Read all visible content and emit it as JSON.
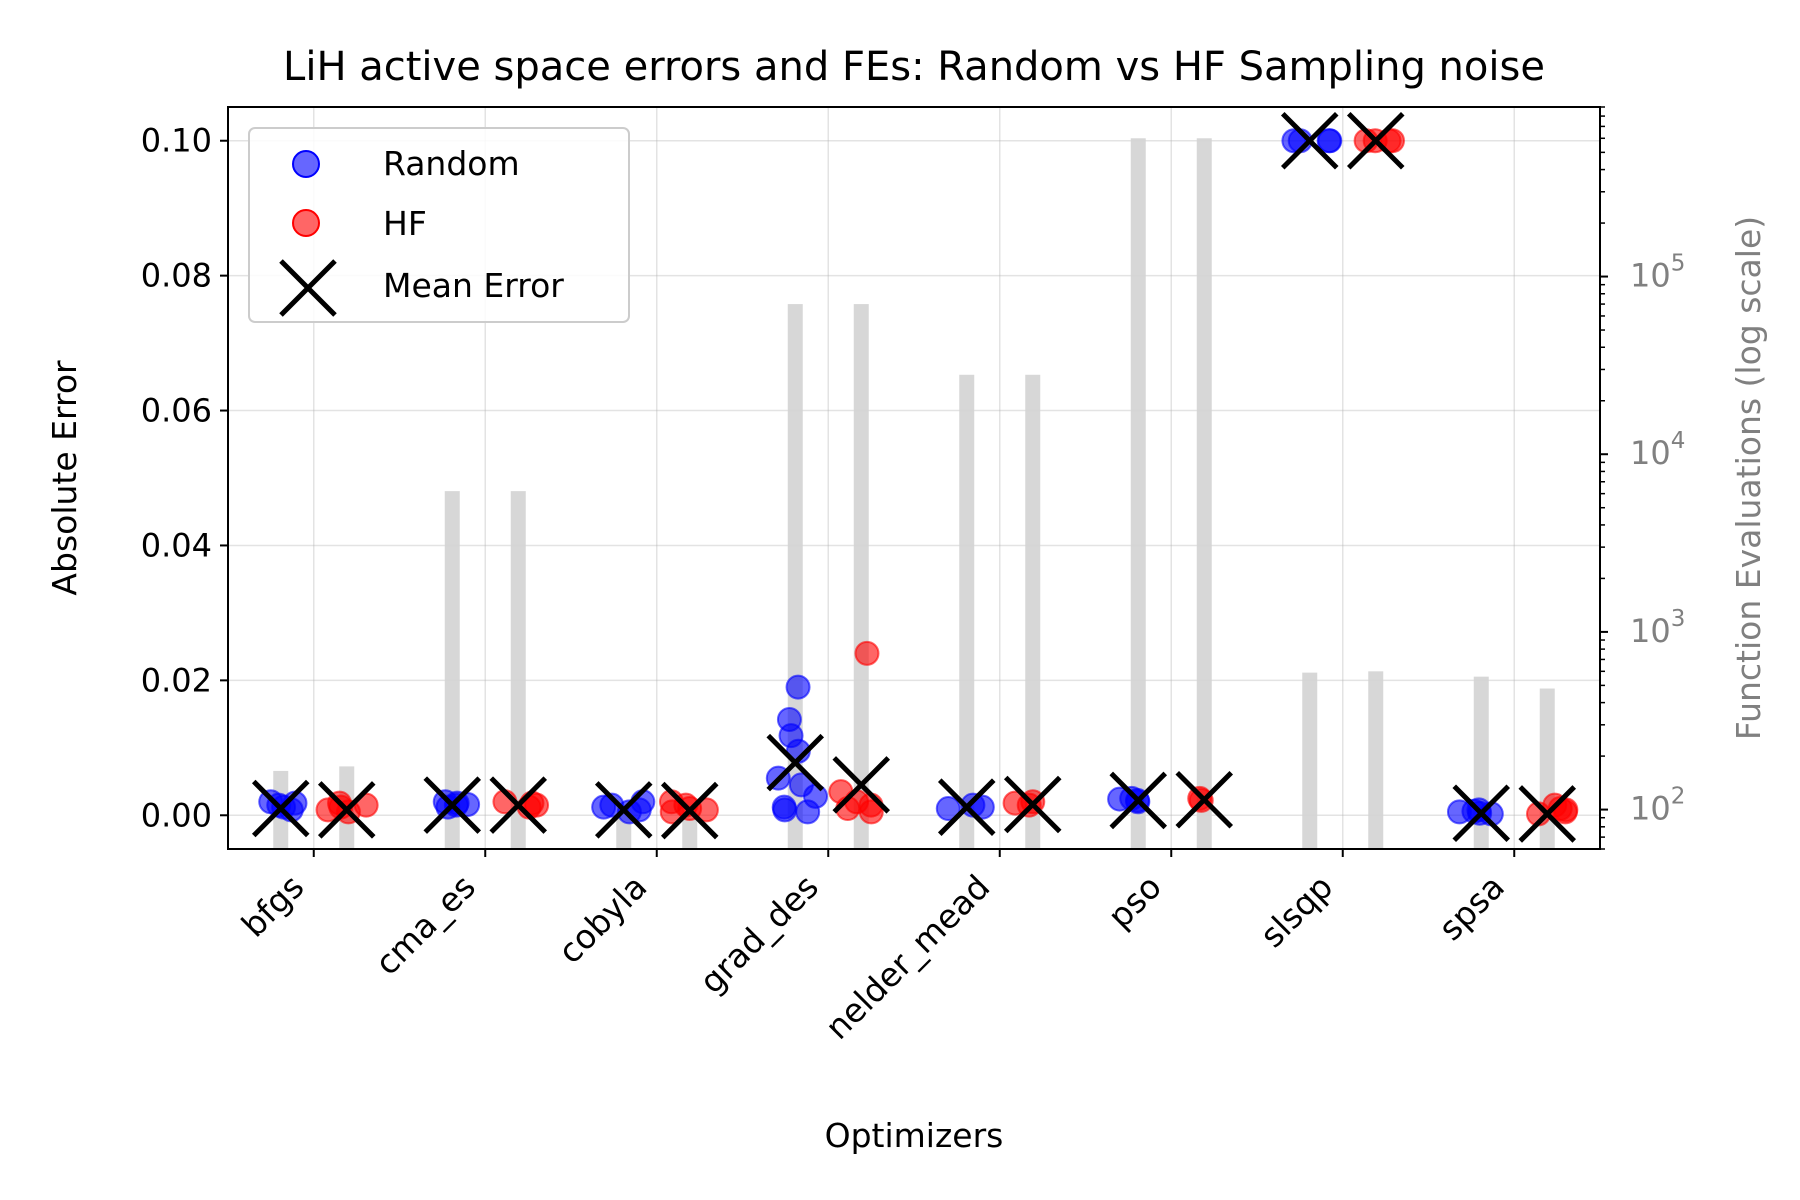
{
  "chart_data": {
    "type": "scatter",
    "title": "LiH active space errors and FEs: Random vs HF Sampling noise",
    "xlabel": "Optimizers",
    "ylabel": "Absolute Error",
    "y2label": "Function Evaluations (log scale)",
    "categories": [
      "bfgs",
      "cma_es",
      "cobyla",
      "grad_des",
      "nelder_mead",
      "pso",
      "slsqp",
      "spsa"
    ],
    "ylim": [
      -0.005,
      0.105
    ],
    "yticks": [
      0.0,
      0.02,
      0.04,
      0.06,
      0.08,
      0.1
    ],
    "ytick_labels": [
      "0.00",
      "0.02",
      "0.04",
      "0.06",
      "0.08",
      "0.10"
    ],
    "y2_scale": "log",
    "y2lim": [
      60,
      900000
    ],
    "y2ticks": [
      100,
      1000,
      10000,
      100000
    ],
    "y2tick_labels": [
      {
        "base": "10",
        "exp": "2"
      },
      {
        "base": "10",
        "exp": "3"
      },
      {
        "base": "10",
        "exp": "4"
      },
      {
        "base": "10",
        "exp": "5"
      }
    ],
    "grid": true,
    "legend": {
      "position": "top-left",
      "entries": [
        {
          "label": "Random",
          "marker": "circle",
          "color": "#0000ff"
        },
        {
          "label": "HF",
          "marker": "circle",
          "color": "#ff0000"
        },
        {
          "label": "Mean Error",
          "marker": "x",
          "color": "#000000"
        }
      ]
    },
    "colors": {
      "random": "#0000ff",
      "hf": "#ff0000",
      "mean": "#000000",
      "fe_bar": "#d3d3d3",
      "y2_axis": "#808080"
    },
    "series": [
      {
        "name": "Random",
        "offset": "left",
        "points": [
          [
            0.0008,
            0.0012,
            0.0015,
            0.002,
            0.0018
          ],
          [
            0.0015,
            0.0018,
            0.0012,
            0.0016,
            0.002
          ],
          [
            0.0008,
            0.0012,
            0.0005,
            0.002,
            0.0015
          ],
          [
            0.019,
            0.0142,
            0.0118,
            0.0095,
            0.0055,
            0.0045,
            0.0028,
            0.0012,
            0.0008,
            0.0005
          ],
          [
            0.0012,
            0.0015,
            0.001
          ],
          [
            0.0022,
            0.0025,
            0.002,
            0.0024
          ],
          [
            0.1,
            0.1,
            0.1,
            0.1
          ],
          [
            0.0008,
            0.0003,
            0.0005,
            0.0002,
            0.0006
          ]
        ],
        "mean": [
          0.001,
          0.0015,
          0.0008,
          0.0078,
          0.0012,
          0.0022,
          0.1,
          0.0003
        ],
        "fe": [
          165,
          6200,
          95,
          70000,
          28000,
          600000,
          590,
          560
        ]
      },
      {
        "name": "HF",
        "offset": "right",
        "points": [
          [
            0.0008,
            0.0012,
            0.0018,
            0.0015,
            0.0005
          ],
          [
            0.0015,
            0.0018,
            0.002,
            0.0012
          ],
          [
            0.001,
            0.0005,
            0.002,
            0.0015,
            0.0008
          ],
          [
            0.024,
            0.0035,
            0.002,
            0.001,
            0.0005,
            0.0015
          ],
          [
            0.0015,
            0.0018,
            0.002
          ],
          [
            0.0025,
            0.0022
          ],
          [
            0.1,
            0.1,
            0.1,
            0.1
          ],
          [
            0.0015,
            0.001,
            0.0005,
            0.0002,
            0.0008
          ]
        ],
        "mean": [
          0.0008,
          0.0015,
          0.0007,
          0.0045,
          0.0016,
          0.0023,
          0.1,
          0.0002
        ],
        "fe": [
          175,
          6200,
          90,
          70000,
          28000,
          600000,
          600,
          480
        ]
      }
    ]
  }
}
